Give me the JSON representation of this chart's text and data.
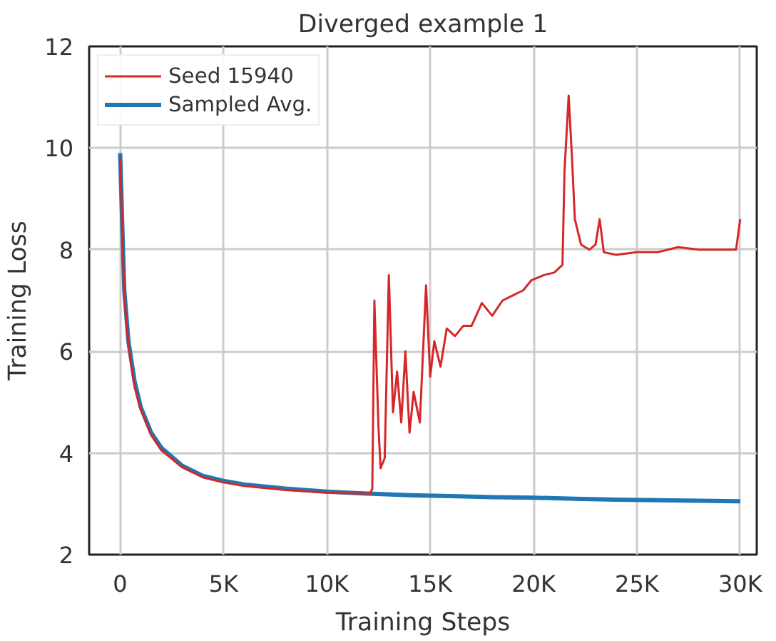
{
  "chart_data": {
    "type": "line",
    "title": "Diverged example 1",
    "xlabel": "Training Steps",
    "ylabel": "Training Loss",
    "xlim": [
      -1500,
      30800
    ],
    "ylim": [
      2,
      12
    ],
    "xticks": [
      {
        "value": 0,
        "label": "0"
      },
      {
        "value": 5000,
        "label": "5K"
      },
      {
        "value": 10000,
        "label": "10K"
      },
      {
        "value": 15000,
        "label": "15K"
      },
      {
        "value": 20000,
        "label": "20K"
      },
      {
        "value": 25000,
        "label": "25K"
      },
      {
        "value": 30000,
        "label": "30K"
      }
    ],
    "yticks": [
      2,
      4,
      6,
      8,
      10,
      12
    ],
    "grid": true,
    "legend": "top left",
    "line_style": "solid",
    "marker": "none",
    "series": [
      {
        "name": "Sampled Avg.",
        "color": "#1f77b4",
        "x": [
          0,
          100,
          200,
          400,
          700,
          1000,
          1500,
          2000,
          3000,
          4000,
          5000,
          6000,
          8000,
          10000,
          12000,
          14000,
          16000,
          18000,
          20000,
          22000,
          24000,
          26000,
          28000,
          30000
        ],
        "values": [
          9.9,
          8.5,
          7.2,
          6.2,
          5.4,
          4.9,
          4.4,
          4.1,
          3.75,
          3.55,
          3.45,
          3.38,
          3.3,
          3.24,
          3.2,
          3.17,
          3.15,
          3.13,
          3.12,
          3.1,
          3.08,
          3.07,
          3.06,
          3.05
        ]
      },
      {
        "name": "Seed 15940",
        "color": "#d62728",
        "x": [
          0,
          100,
          200,
          400,
          700,
          1000,
          1500,
          2000,
          3000,
          4000,
          5000,
          6000,
          8000,
          10000,
          12100,
          12200,
          12300,
          12500,
          12600,
          12800,
          13000,
          13200,
          13400,
          13600,
          13800,
          14000,
          14200,
          14500,
          14800,
          15000,
          15200,
          15500,
          15800,
          16200,
          16600,
          17000,
          17500,
          18000,
          18500,
          19000,
          19500,
          19900,
          20500,
          21000,
          21400,
          21500,
          21700,
          21850,
          22000,
          22300,
          22700,
          23000,
          23200,
          23400,
          24000,
          25000,
          26000,
          27000,
          28000,
          29000,
          29800,
          30000
        ],
        "values": [
          9.8,
          8.4,
          7.1,
          6.1,
          5.3,
          4.85,
          4.35,
          4.05,
          3.72,
          3.52,
          3.42,
          3.35,
          3.27,
          3.22,
          3.2,
          3.3,
          7.0,
          4.5,
          3.7,
          3.9,
          7.5,
          4.8,
          5.6,
          4.6,
          6.0,
          4.4,
          5.2,
          4.6,
          7.3,
          5.5,
          6.2,
          5.7,
          6.45,
          6.3,
          6.5,
          6.5,
          6.95,
          6.7,
          7.0,
          7.1,
          7.2,
          7.4,
          7.5,
          7.55,
          7.7,
          9.55,
          11.03,
          9.9,
          8.6,
          8.1,
          8.0,
          8.1,
          8.6,
          7.95,
          7.9,
          7.95,
          7.95,
          8.05,
          8.0,
          8.0,
          8.0,
          8.6
        ]
      }
    ]
  }
}
